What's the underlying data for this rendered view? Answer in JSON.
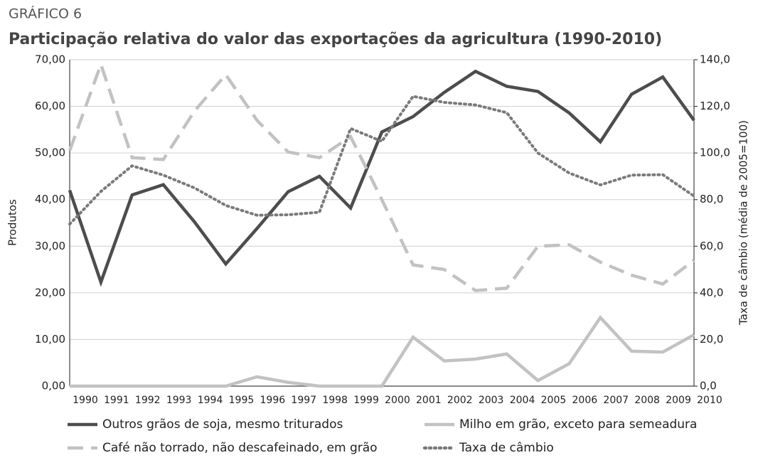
{
  "chart_data": {
    "type": "line",
    "label": "GRÁFICO 6",
    "title": "Participação relativa do valor das exportações da agricultura (1990-2010)",
    "ylabel": "Produtos",
    "y2label": "Taxa de câmbio (média de 2005=100)",
    "categories": [
      "1990",
      "1991",
      "1992",
      "1993",
      "1994",
      "1995",
      "1996",
      "1997",
      "1998",
      "1999",
      "2000",
      "2001",
      "2002",
      "2003",
      "2004",
      "2005",
      "2006",
      "2007",
      "2008",
      "2009",
      "2010"
    ],
    "series": [
      {
        "name": "Outros grãos de soja, mesmo triturados",
        "color": "#4d4d4d",
        "linestyle": "solid",
        "values": [
          42,
          22.3,
          41,
          43.2,
          35.2,
          26.2,
          33.8,
          41.7,
          45,
          38.2,
          54.5,
          57.8,
          63,
          67.5,
          64.3,
          63.2,
          58.6,
          52.4,
          62.6,
          66.3,
          57
        ]
      },
      {
        "name": "Milho em grão, exceto para semeadura",
        "color": "#c2c2c2",
        "linestyle": "solid",
        "values": [
          0,
          0,
          0,
          0,
          0,
          0,
          2,
          0.8,
          0,
          0,
          0,
          10.5,
          5.4,
          5.8,
          6.9,
          1.2,
          4.8,
          14.7,
          7.5,
          7.3,
          11
        ]
      },
      {
        "name": "Café não torrado, não descafeinado, em grão",
        "color": "#c2c2c2",
        "linestyle": "dashed",
        "values": [
          50.5,
          69,
          49,
          48.6,
          59,
          66.8,
          57,
          50.2,
          49,
          53.5,
          40,
          26,
          25,
          20.5,
          21,
          30,
          30.3,
          26.6,
          23.8,
          21.9,
          27
        ]
      },
      {
        "name": "Taxa de câmbio",
        "color": "#7a7a7a",
        "linestyle": "dotted",
        "axis": "y2",
        "values": [
          69.5,
          83.5,
          94.5,
          90.5,
          85,
          77.5,
          73.3,
          73.5,
          74.6,
          110.5,
          105,
          124.3,
          121.7,
          120.6,
          117.3,
          100,
          91.4,
          86.3,
          90.5,
          90.7,
          81.5
        ]
      }
    ],
    "ylim": [
      0,
      70
    ],
    "yticks": [
      {
        "value": 0,
        "label": "0,00"
      },
      {
        "value": 10,
        "label": "10,00"
      },
      {
        "value": 20,
        "label": "20,00"
      },
      {
        "value": 30,
        "label": "30,00"
      },
      {
        "value": 40,
        "label": "40,00"
      },
      {
        "value": 50,
        "label": "50,00"
      },
      {
        "value": 60,
        "label": "60,00"
      },
      {
        "value": 70,
        "label": "70,00"
      }
    ],
    "y2lim": [
      0,
      140
    ],
    "y2ticks": [
      {
        "value": 0,
        "label": "0,0"
      },
      {
        "value": 20,
        "label": "20,0"
      },
      {
        "value": 40,
        "label": "40,0"
      },
      {
        "value": 60,
        "label": "60,0"
      },
      {
        "value": 80,
        "label": "80,0"
      },
      {
        "value": 100,
        "label": "100,0"
      },
      {
        "value": 120,
        "label": "120,0"
      },
      {
        "value": 140,
        "label": "140,0"
      }
    ],
    "grid": true
  }
}
